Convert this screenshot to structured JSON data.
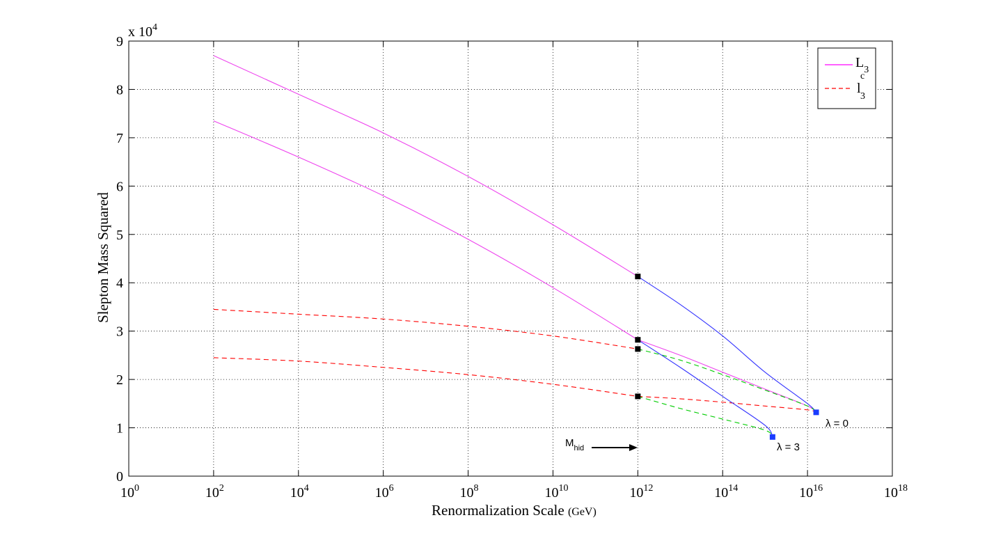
{
  "chart_data": {
    "type": "line",
    "xlabel": "Renormalization Scale",
    "xlabel_unit": "(GeV)",
    "ylabel": "Slepton Mass Squared",
    "y_multiplier": {
      "base": "x 10",
      "exponent": "4"
    },
    "x_scale": "log",
    "xlim": [
      1,
      1e+18
    ],
    "ylim": [
      0,
      90000
    ],
    "x_ticks": [
      {
        "base": "10",
        "exp": "0"
      },
      {
        "base": "10",
        "exp": "2"
      },
      {
        "base": "10",
        "exp": "4"
      },
      {
        "base": "10",
        "exp": "6"
      },
      {
        "base": "10",
        "exp": "8"
      },
      {
        "base": "10",
        "exp": "10"
      },
      {
        "base": "10",
        "exp": "12"
      },
      {
        "base": "10",
        "exp": "14"
      },
      {
        "base": "10",
        "exp": "16"
      },
      {
        "base": "10",
        "exp": "18"
      }
    ],
    "y_ticks": [
      "0",
      "1",
      "2",
      "3",
      "4",
      "5",
      "6",
      "7",
      "8",
      "9"
    ],
    "grid": true,
    "legend_position": "top-right",
    "legend": [
      {
        "letter": "L",
        "sub": "3",
        "sup": "",
        "color": "#ff00ff",
        "dash": "solid"
      },
      {
        "letter": "l",
        "sub": "3",
        "sup": "c",
        "color": "#ff0000",
        "dash": "dashed"
      }
    ],
    "series": [
      {
        "color": "#ee44ee",
        "dash": "solid",
        "x": [
          100.0,
          10000.0,
          1000000.0,
          100000000.0,
          10000000000.0,
          1000000000000.0
        ],
        "y": [
          87000,
          79000,
          71000,
          62000,
          52000,
          41300
        ]
      },
      {
        "color": "#ee44ee",
        "dash": "solid",
        "x": [
          100.0,
          10000.0,
          1000000.0,
          100000000.0,
          10000000000.0,
          1000000000000.0
        ],
        "y": [
          73500,
          66000,
          58000,
          49000,
          39000,
          28200
        ]
      },
      {
        "color": "#ff0000",
        "dash": "dashed",
        "x": [
          100.0,
          10000.0,
          1000000.0,
          100000000.0,
          10000000000.0,
          1000000000000.0
        ],
        "y": [
          34500,
          33500,
          32500,
          31000,
          29000,
          26300
        ]
      },
      {
        "color": "#ff0000",
        "dash": "dashed",
        "x": [
          100.0,
          10000.0,
          1000000.0,
          100000000.0,
          10000000000.0,
          1000000000000.0
        ],
        "y": [
          24500,
          23800,
          22500,
          21000,
          19000,
          16500
        ]
      },
      {
        "color": "#3333ff",
        "dash": "solid",
        "x": [
          1000000000000.0,
          10000000000000.0,
          100000000000000.0,
          1000000000000000.0,
          1e+16,
          1.6e+16
        ],
        "y": [
          41300,
          35500,
          29000,
          21500,
          15000,
          13200
        ]
      },
      {
        "color": "#ee44ee",
        "dash": "solid",
        "x": [
          1000000000000.0,
          10000000000000.0,
          100000000000000.0,
          1000000000000000.0,
          1e+16,
          1.6e+16
        ],
        "y": [
          28200,
          25000,
          21500,
          18000,
          14500,
          13200
        ]
      },
      {
        "color": "#ff0000",
        "dash": "dashed",
        "x": [
          1000000000000.0,
          10000000000000.0,
          100000000000000.0,
          1000000000000000.0,
          1e+16,
          1.6e+16
        ],
        "y": [
          16500,
          16000,
          15300,
          14500,
          13700,
          13200
        ]
      },
      {
        "color": "#00cc00",
        "dash": "dashed",
        "x": [
          1000000000000.0,
          10000000000000.0,
          100000000000000.0,
          1000000000000000.0,
          1e+16,
          1.6e+16
        ],
        "y": [
          26300,
          24000,
          21000,
          17800,
          14500,
          13200
        ]
      },
      {
        "color": "#3333ff",
        "dash": "solid",
        "x": [
          1000000000000.0,
          10000000000000.0,
          100000000000000.0,
          1000000000000000.0,
          1500000000000000.0
        ],
        "y": [
          28200,
          22500,
          16500,
          10500,
          8100
        ]
      },
      {
        "color": "#00cc00",
        "dash": "dashed",
        "x": [
          1000000000000.0,
          10000000000000.0,
          100000000000000.0,
          1000000000000000.0,
          1500000000000000.0
        ],
        "y": [
          16500,
          14000,
          11800,
          9500,
          8100
        ]
      }
    ],
    "markers": [
      {
        "x": 1000000000000.0,
        "y": 41300,
        "color": "#000000"
      },
      {
        "x": 1000000000000.0,
        "y": 28200,
        "color": "#000000"
      },
      {
        "x": 1000000000000.0,
        "y": 26300,
        "color": "#000000"
      },
      {
        "x": 1000000000000.0,
        "y": 16500,
        "color": "#000000"
      },
      {
        "x": 1.6e+16,
        "y": 13200,
        "color": "#1a3cff"
      },
      {
        "x": 1500000000000000.0,
        "y": 8100,
        "color": "#1a3cff"
      }
    ],
    "annotations": {
      "lambda0": "λ = 0",
      "lambda3": "λ = 3",
      "mhid_main": "M",
      "mhid_sub": "hid"
    }
  }
}
